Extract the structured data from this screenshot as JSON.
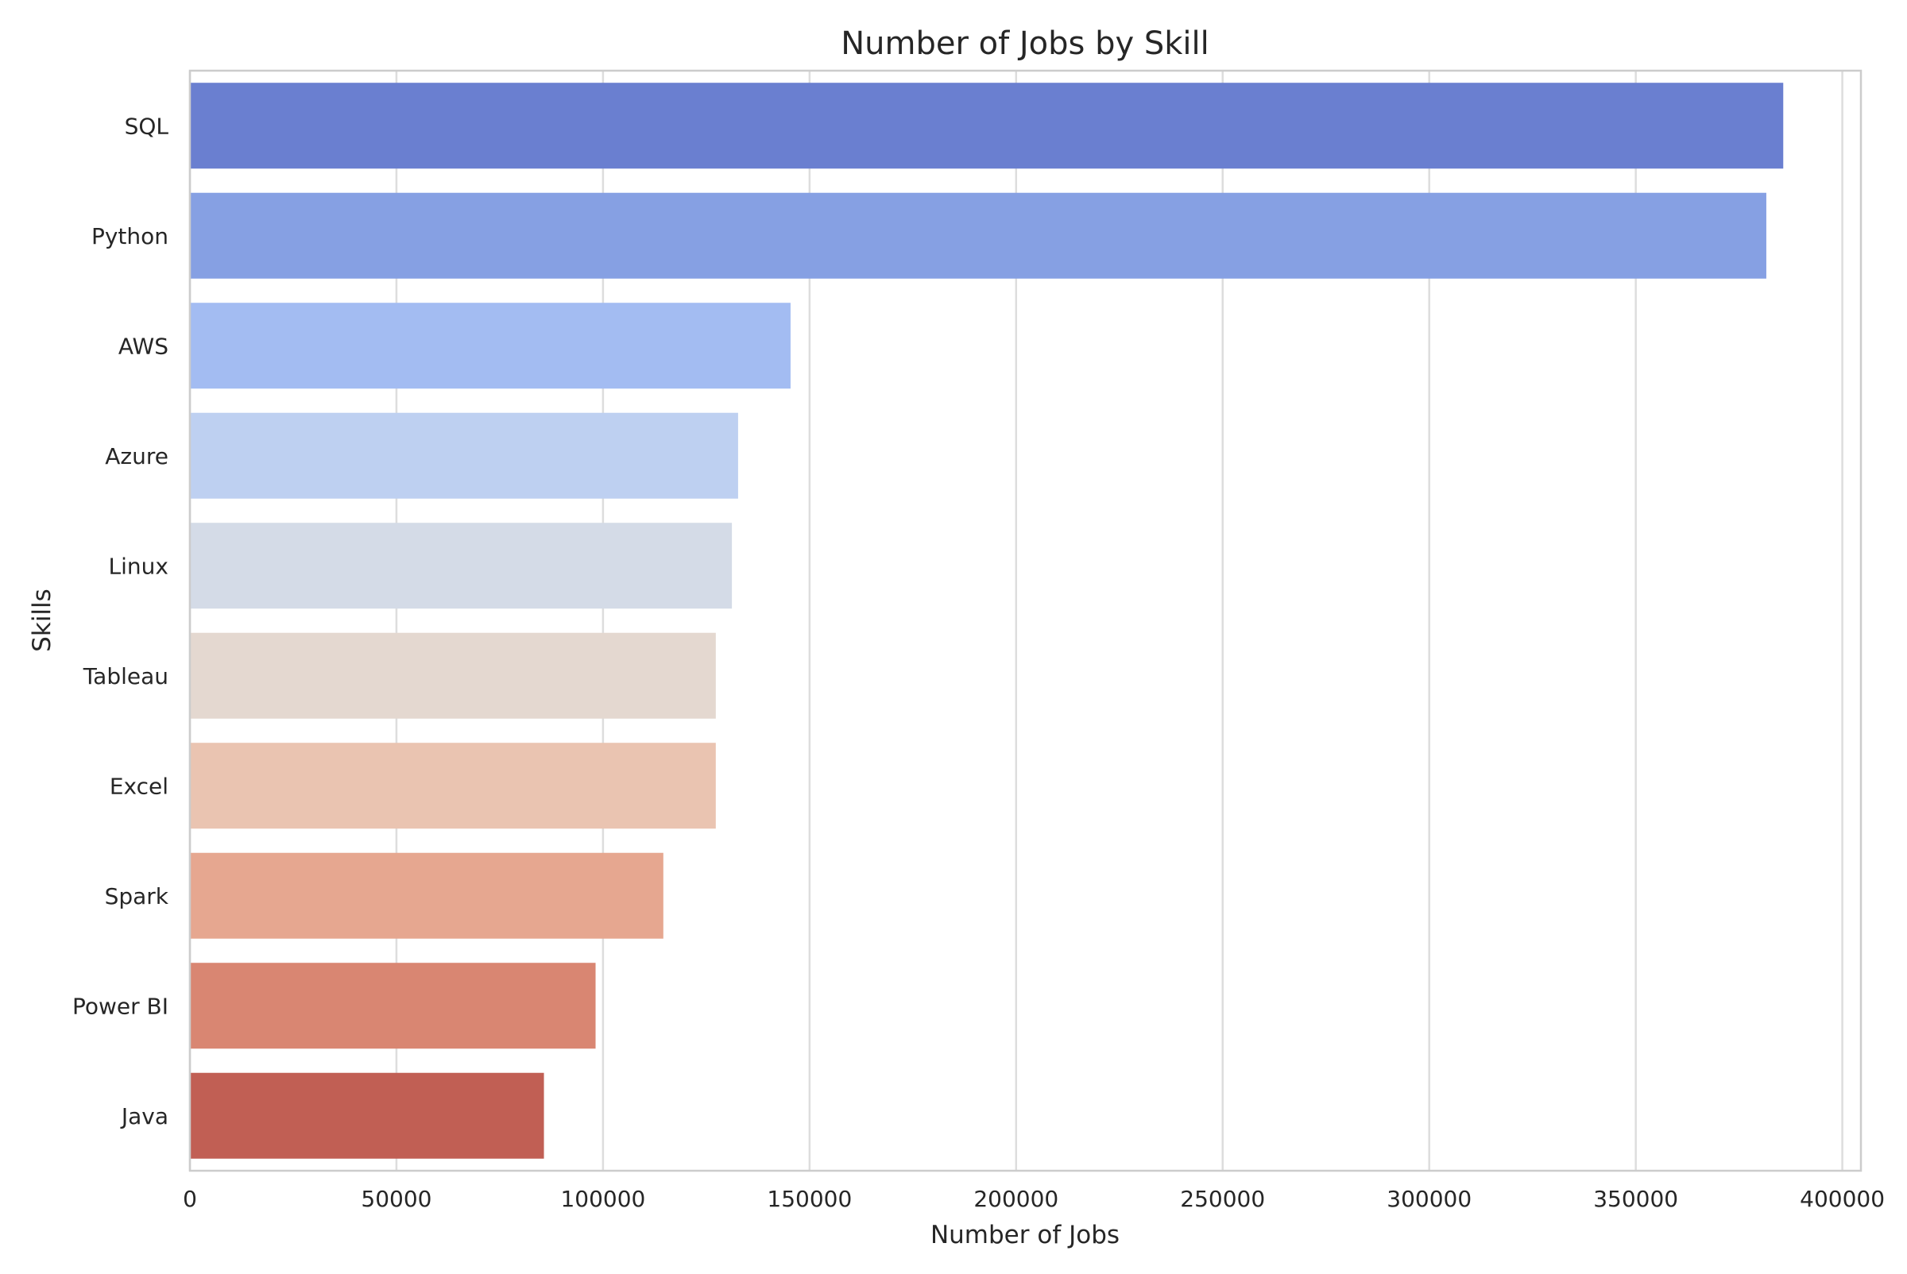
{
  "chart_data": {
    "type": "bar",
    "orientation": "horizontal",
    "title": "Number of Jobs by Skill",
    "xlabel": "Number of Jobs",
    "ylabel": "Skills",
    "categories": [
      "SQL",
      "Python",
      "AWS",
      "Azure",
      "Linux",
      "Tableau",
      "Excel",
      "Spark",
      "Power BI",
      "Java"
    ],
    "values": [
      385700,
      381600,
      145400,
      132700,
      131200,
      127300,
      127300,
      114600,
      98200,
      85700
    ],
    "xlim": [
      0,
      404500
    ],
    "xticks": [
      0,
      50000,
      100000,
      150000,
      200000,
      250000,
      300000,
      350000,
      400000
    ],
    "xtick_labels": [
      "0",
      "50000",
      "100000",
      "150000",
      "200000",
      "250000",
      "300000",
      "350000",
      "400000"
    ],
    "grid": true,
    "colors": [
      "#6a7fd0",
      "#86a0e3",
      "#a3bcf2",
      "#bed0f1",
      "#d4dbe7",
      "#e4d8d0",
      "#eac4b1",
      "#e6a790",
      "#d98672",
      "#c15f54"
    ]
  }
}
